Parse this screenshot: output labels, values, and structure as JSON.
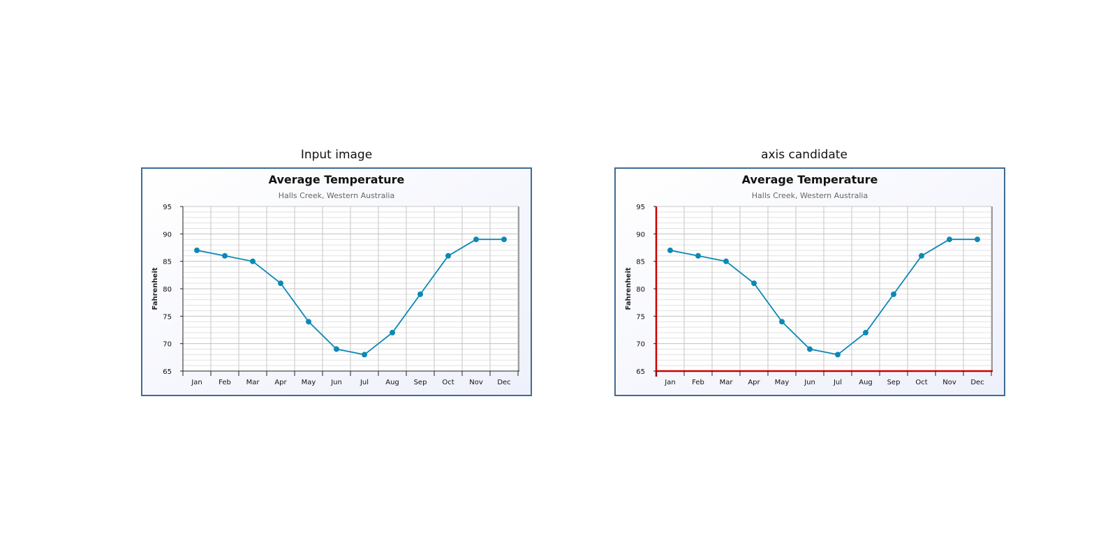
{
  "panels": [
    {
      "title": "Input image"
    },
    {
      "title": "axis candidate"
    }
  ],
  "colors": {
    "series": "#0b89b5",
    "axis_highlight": "#cc0000",
    "frame_border": "#3f6b92",
    "grid_major": "#c6c6c6",
    "grid_minor": "#e1e1e1"
  },
  "chart_data": [
    {
      "type": "line",
      "title": "Average Temperature",
      "subtitle": "Halls Creek, Western Australia",
      "xlabel": "",
      "ylabel": "Fahrenheit",
      "categories": [
        "Jan",
        "Feb",
        "Mar",
        "Apr",
        "May",
        "Jun",
        "Jul",
        "Aug",
        "Sep",
        "Oct",
        "Nov",
        "Dec"
      ],
      "series": [
        {
          "values": [
            87,
            86,
            85,
            81,
            74,
            69,
            68,
            72,
            79,
            86,
            89,
            89
          ]
        }
      ],
      "ylim": [
        65,
        95
      ],
      "yticks": [
        "95",
        "90",
        "85",
        "80",
        "75",
        "70",
        "65"
      ],
      "grid": true,
      "highlight_axes": false
    },
    {
      "type": "line",
      "title": "Average Temperature",
      "subtitle": "Halls Creek, Western Australia",
      "xlabel": "",
      "ylabel": "Fahrenheit",
      "categories": [
        "Jan",
        "Feb",
        "Mar",
        "Apr",
        "May",
        "Jun",
        "Jul",
        "Aug",
        "Sep",
        "Oct",
        "Nov",
        "Dec"
      ],
      "series": [
        {
          "values": [
            87,
            86,
            85,
            81,
            74,
            69,
            68,
            72,
            79,
            86,
            89,
            89
          ]
        }
      ],
      "ylim": [
        65,
        95
      ],
      "yticks": [
        "95",
        "90",
        "85",
        "80",
        "75",
        "70",
        "65"
      ],
      "grid": true,
      "highlight_axes": true
    }
  ]
}
